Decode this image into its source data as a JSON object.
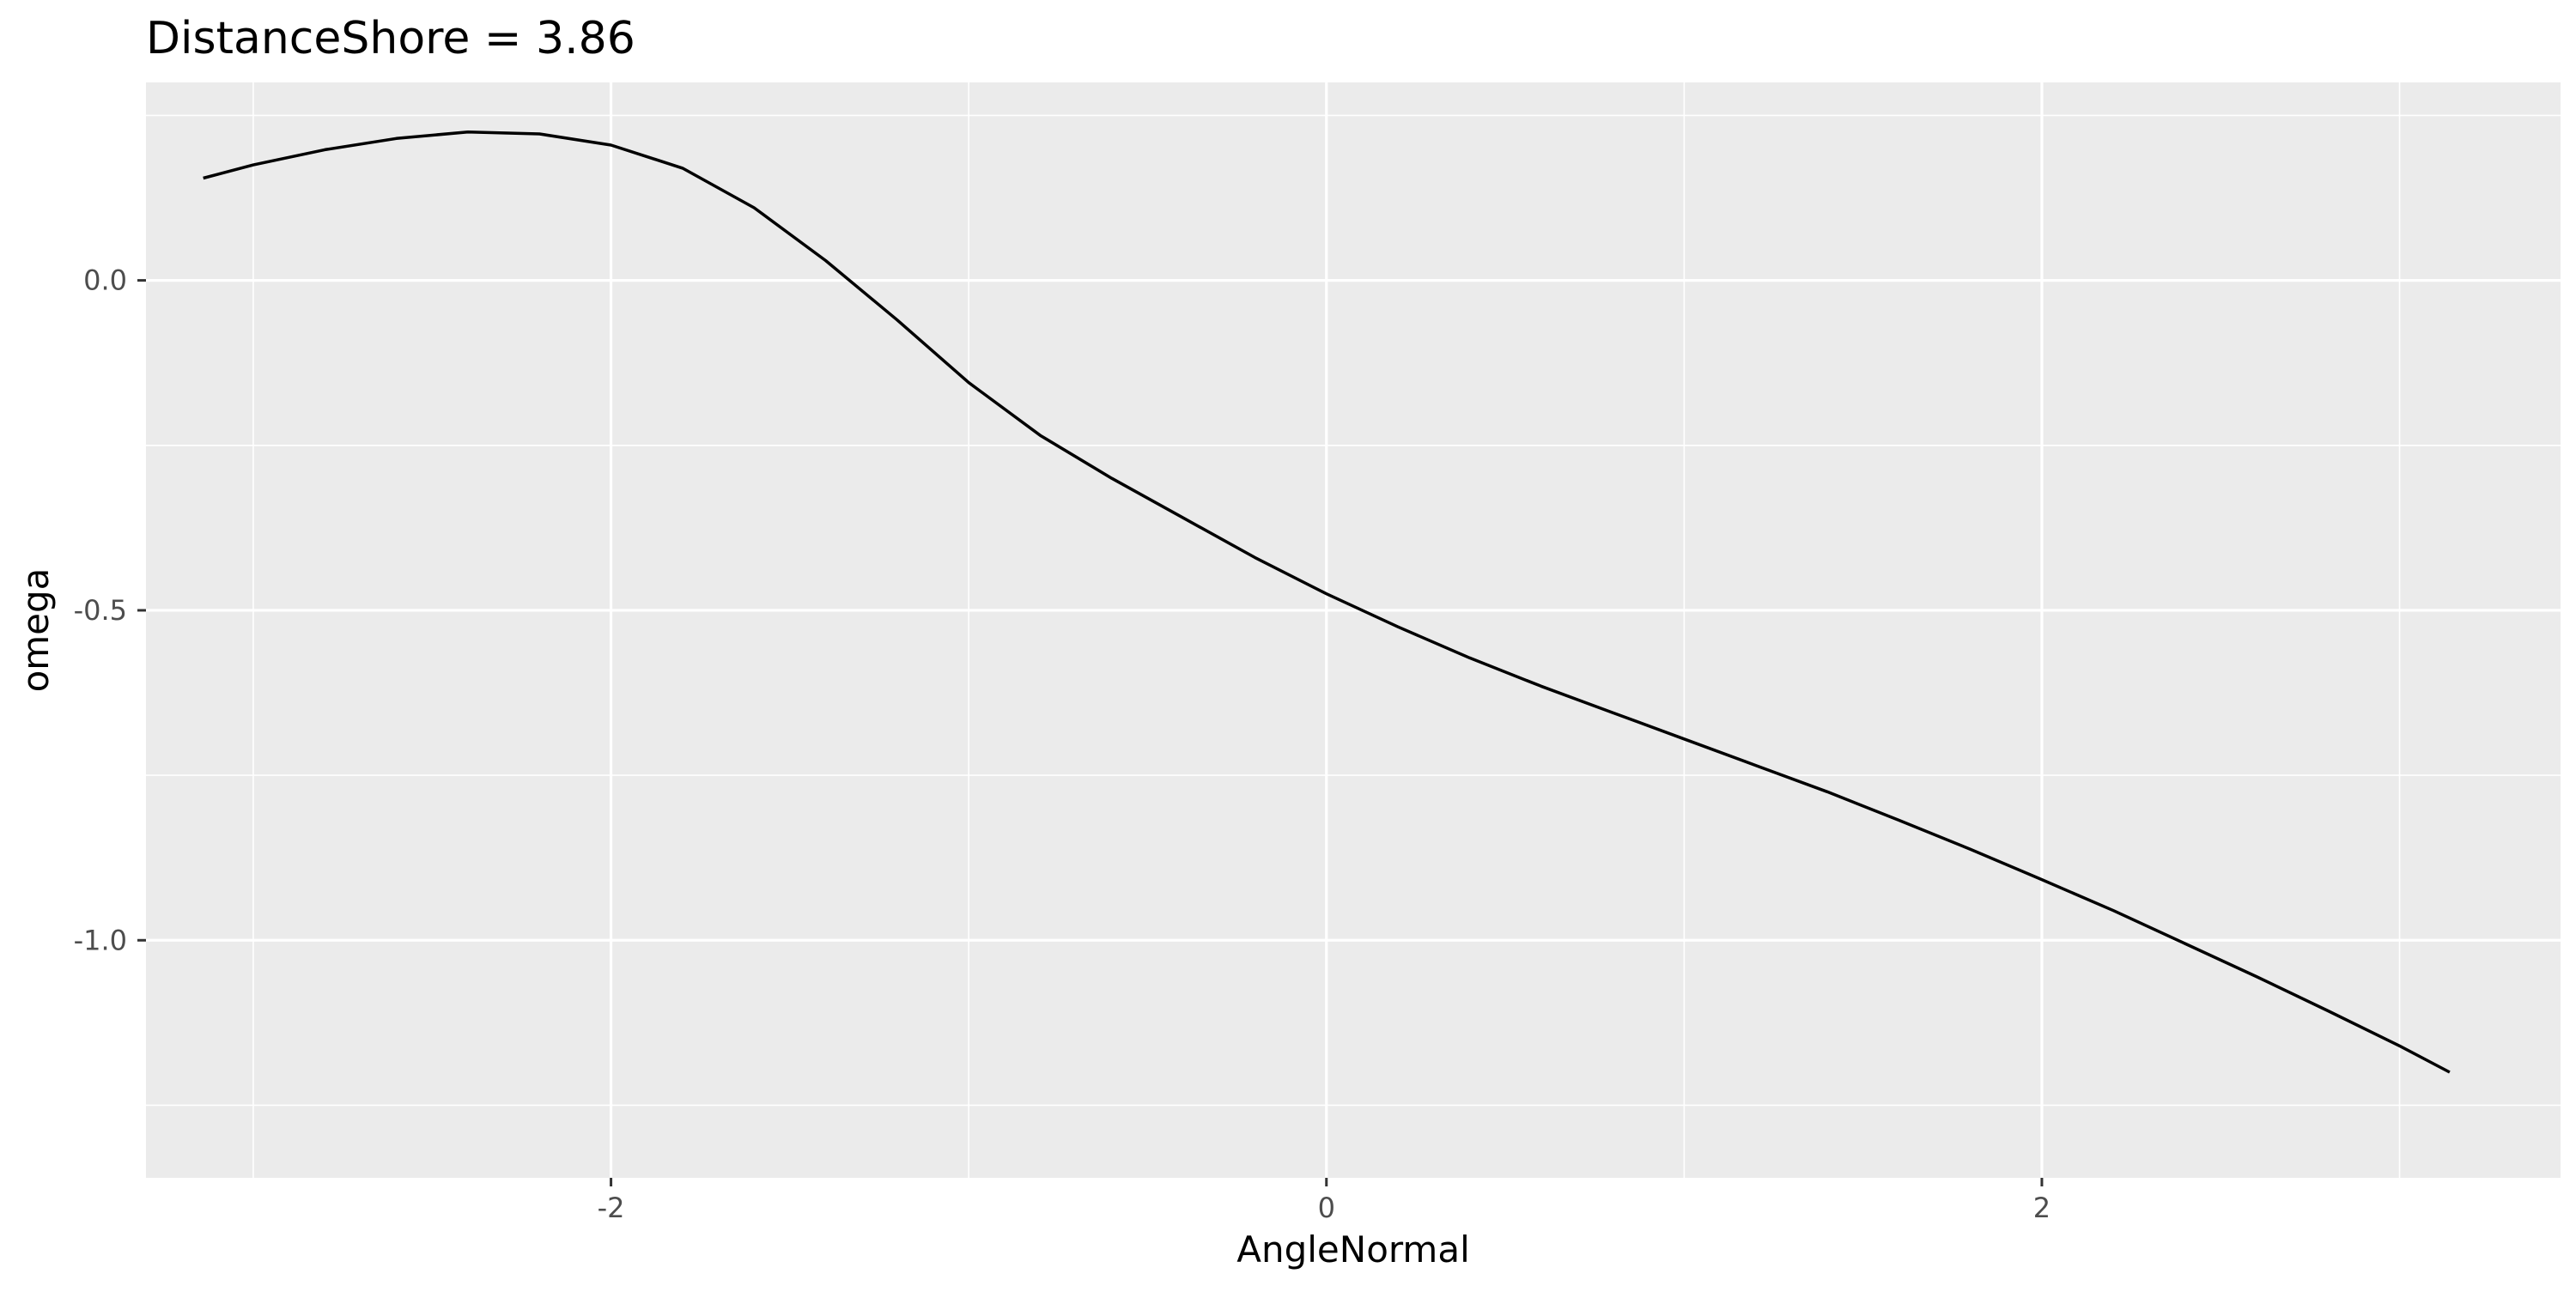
{
  "chart_data": {
    "type": "line",
    "title": "DistanceShore = 3.86",
    "xlabel": "AngleNormal",
    "ylabel": "omega",
    "xlim": [
      -3.3,
      3.45
    ],
    "ylim": [
      -1.36,
      0.3
    ],
    "x_ticks": [
      -2,
      0,
      2
    ],
    "x_tick_labels": [
      "-2",
      "0",
      "2"
    ],
    "y_ticks": [
      0.0,
      -0.5,
      -1.0
    ],
    "y_tick_labels": [
      "0.0",
      "-0.5",
      "-1.0"
    ],
    "grid": true,
    "legend": "none",
    "colors": {
      "panel_background": "#ebebeb",
      "grid": "#ffffff",
      "line": "#000000",
      "tick_label": "#4d4d4d",
      "text": "#000000"
    },
    "series": [
      {
        "x": [
          -3.14,
          -3.0,
          -2.8,
          -2.6,
          -2.4,
          -2.2,
          -2.0,
          -1.8,
          -1.6,
          -1.4,
          -1.2,
          -1.0,
          -0.8,
          -0.6,
          -0.4,
          -0.2,
          0.0,
          0.2,
          0.4,
          0.6,
          0.8,
          1.0,
          1.2,
          1.4,
          1.6,
          1.8,
          2.0,
          2.2,
          2.4,
          2.6,
          2.8,
          3.0,
          3.14
        ],
        "y": [
          0.155,
          0.175,
          0.198,
          0.215,
          0.225,
          0.222,
          0.205,
          0.17,
          0.11,
          0.03,
          -0.06,
          -0.155,
          -0.235,
          -0.3,
          -0.36,
          -0.42,
          -0.475,
          -0.525,
          -0.572,
          -0.615,
          -0.655,
          -0.695,
          -0.735,
          -0.775,
          -0.818,
          -0.862,
          -0.908,
          -0.955,
          -1.005,
          -1.055,
          -1.107,
          -1.16,
          -1.2
        ]
      }
    ]
  }
}
